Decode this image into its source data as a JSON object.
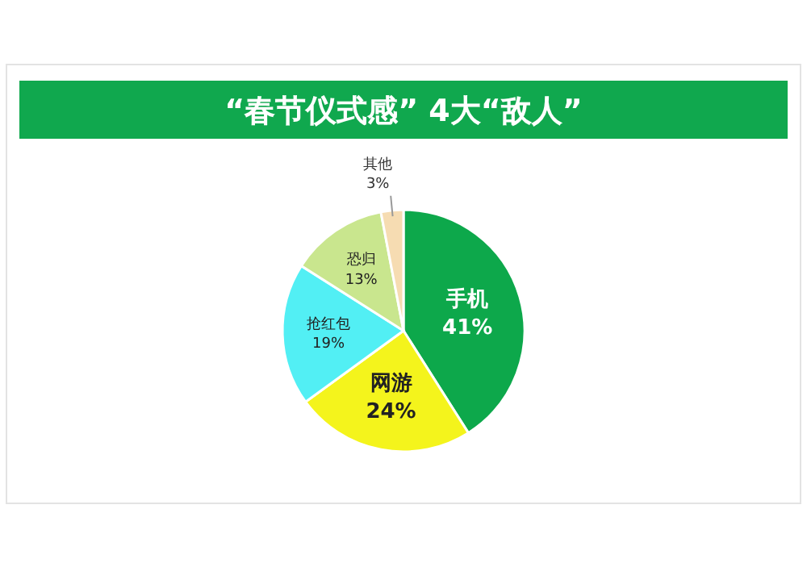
{
  "chart_data": {
    "type": "pie",
    "title": "“春节仪式感” 4大“敌人”",
    "categories": [
      "手机",
      "网游",
      "抢红包",
      "恐归",
      "其他"
    ],
    "values": [
      41,
      24,
      19,
      13,
      3
    ],
    "value_labels": [
      "41%",
      "24%",
      "19%",
      "13%",
      "3%"
    ],
    "colors": [
      "#0da84b",
      "#f4f41c",
      "#52eff4",
      "#c9e68e",
      "#f6dcb2"
    ]
  }
}
